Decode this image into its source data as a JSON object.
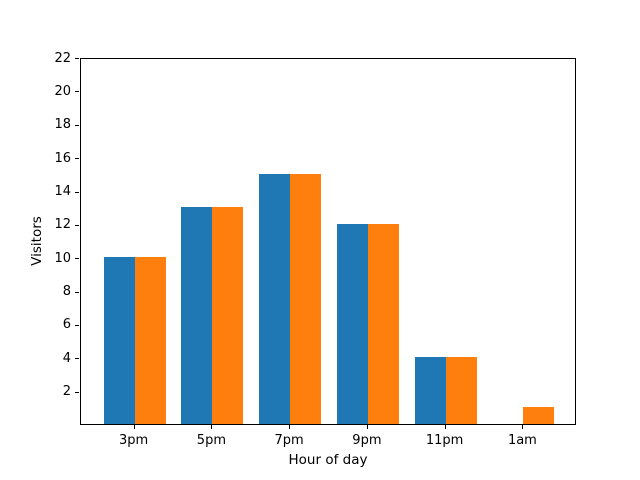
{
  "chart_data": {
    "type": "bar",
    "title": "",
    "xlabel": "Hour of day",
    "ylabel": "Visitors",
    "categories": [
      "3pm",
      "5pm",
      "7pm",
      "9pm",
      "11pm",
      "1am"
    ],
    "series": [
      {
        "name": "blue-series",
        "color": "#1f77b4",
        "values": [
          10,
          13,
          15,
          12,
          4,
          0
        ]
      },
      {
        "name": "orange-series",
        "color": "#ff7f0e",
        "values": [
          10,
          13,
          15,
          12,
          4,
          1
        ]
      }
    ],
    "ylim": [
      0,
      22
    ],
    "yticks": [
      2,
      4,
      6,
      8,
      10,
      12,
      14,
      16,
      18,
      20,
      22
    ],
    "xlim": [
      -0.69,
      5.69
    ],
    "bar_width": 0.4,
    "grid": false,
    "legend": "none",
    "background_color": "#ffffff",
    "axis_color": "#000000"
  }
}
